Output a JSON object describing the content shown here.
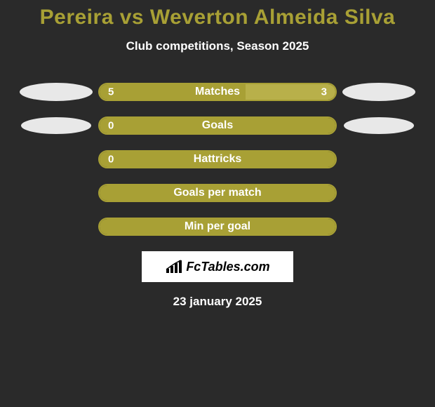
{
  "title": "Pereira vs Weverton Almeida Silva",
  "subtitle": "Club competitions, Season 2025",
  "background_color": "#2a2a2a",
  "accent_color": "#a8a035",
  "text_color": "#ffffff",
  "title_color": "#a8a035",
  "title_fontsize": 30,
  "subtitle_fontsize": 17,
  "bar_track_width": 340,
  "bar_track_height": 26,
  "rows": [
    {
      "label": "Matches",
      "left_value": "5",
      "right_value": "3",
      "left_fill_pct": 62,
      "right_fill_pct": 38,
      "show_left_ellipse": true,
      "show_right_ellipse": true,
      "ellipse_variant": "normal"
    },
    {
      "label": "Goals",
      "left_value": "0",
      "right_value": "",
      "left_fill_pct": 100,
      "right_fill_pct": 0,
      "show_left_ellipse": true,
      "show_right_ellipse": true,
      "ellipse_variant": "left2"
    },
    {
      "label": "Hattricks",
      "left_value": "0",
      "right_value": "",
      "left_fill_pct": 100,
      "right_fill_pct": 0,
      "show_left_ellipse": false,
      "show_right_ellipse": false,
      "ellipse_variant": "normal"
    },
    {
      "label": "Goals per match",
      "left_value": "",
      "right_value": "",
      "left_fill_pct": 100,
      "right_fill_pct": 0,
      "show_left_ellipse": false,
      "show_right_ellipse": false,
      "ellipse_variant": "normal"
    },
    {
      "label": "Min per goal",
      "left_value": "",
      "right_value": "",
      "left_fill_pct": 100,
      "right_fill_pct": 0,
      "show_left_ellipse": false,
      "show_right_ellipse": false,
      "ellipse_variant": "normal"
    }
  ],
  "logo_text": "FcTables.com",
  "date": "23 january 2025"
}
